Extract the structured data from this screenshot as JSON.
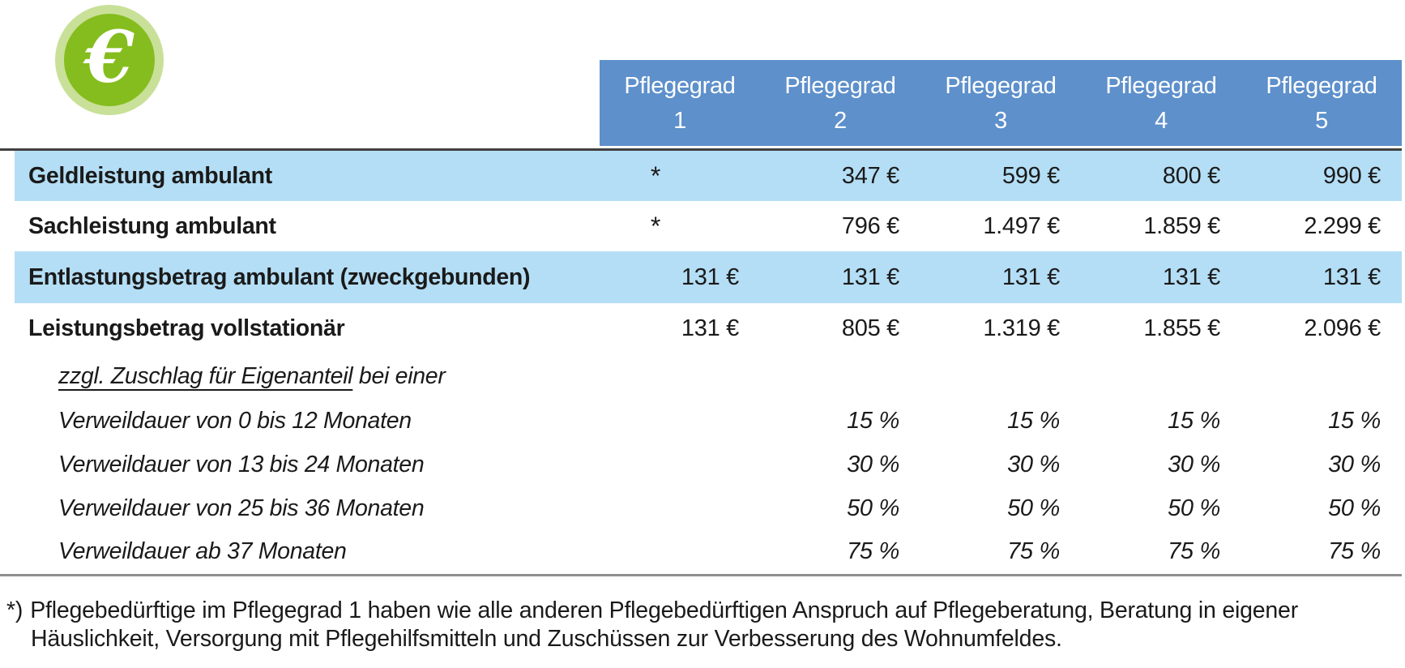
{
  "icon": {
    "glyph": "€",
    "name": "euro-coin"
  },
  "colors": {
    "header_blue": "#5E90CB",
    "row_blue": "#B4DEF5",
    "coin_green": "#85BD1E",
    "coin_ring": "#C9E099",
    "text": "#1A1A1A"
  },
  "table": {
    "columns": [
      {
        "title": "Pflegegrad",
        "number": "1"
      },
      {
        "title": "Pflegegrad",
        "number": "2"
      },
      {
        "title": "Pflegegrad",
        "number": "3"
      },
      {
        "title": "Pflegegrad",
        "number": "4"
      },
      {
        "title": "Pflegegrad",
        "number": "5"
      }
    ],
    "rows": [
      {
        "label": "Geldleistung ambulant",
        "values": [
          "*",
          "347 €",
          "599 €",
          "800 €",
          "990 €"
        ]
      },
      {
        "label": "Sachleistung ambulant",
        "values": [
          "*",
          "796 €",
          "1.497 €",
          "1.859 €",
          "2.299 €"
        ]
      },
      {
        "label": "Entlastungsbetrag ambulant (zweckgebunden)",
        "values": [
          "131 €",
          "131 €",
          "131 €",
          "131 €",
          "131 €"
        ]
      },
      {
        "label": "Leistungsbetrag vollstationär",
        "values": [
          "131 €",
          "805 €",
          "1.319 €",
          "1.855 €",
          "2.096 €"
        ]
      },
      {
        "label_underlined": "zzgl. Zuschlag für Eigenanteil",
        "label_rest": " bei einer",
        "values": [
          "",
          "",
          "",
          "",
          ""
        ]
      },
      {
        "label": "Verweildauer von 0 bis 12 Monaten",
        "values": [
          "",
          "15 %",
          "15 %",
          "15 %",
          "15 %"
        ]
      },
      {
        "label": "Verweildauer von 13 bis 24 Monaten",
        "values": [
          "",
          "30 %",
          "30 %",
          "30 %",
          "30 %"
        ]
      },
      {
        "label": "Verweildauer von 25 bis 36 Monaten",
        "values": [
          "",
          "50 %",
          "50 %",
          "50 %",
          "50 %"
        ]
      },
      {
        "label": "Verweildauer ab 37 Monaten",
        "values": [
          "",
          "75 %",
          "75 %",
          "75 %",
          "75 %"
        ]
      }
    ]
  },
  "footnote": {
    "marker": "*)",
    "text": "Pflegebedürftige im Pflegegrad 1 haben wie alle anderen Pflegebedürftigen Anspruch auf Pflegeberatung, Beratung in eigener Häuslichkeit, Versorgung mit Pflegehilfsmitteln und Zuschüssen zur Verbesserung des Wohnumfeldes."
  }
}
